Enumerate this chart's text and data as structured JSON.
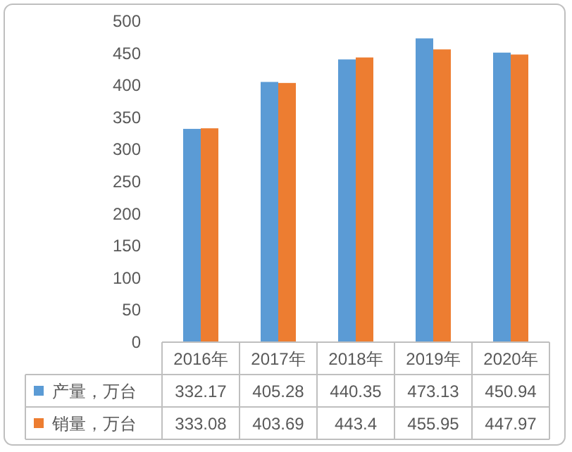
{
  "chart_data": {
    "type": "bar",
    "categories": [
      "2016年",
      "2017年",
      "2018年",
      "2019年",
      "2020年"
    ],
    "series": [
      {
        "name": "产量，万台",
        "color": "#5b9bd5",
        "values": [
          332.17,
          405.28,
          440.35,
          473.13,
          450.94
        ]
      },
      {
        "name": "销量，万台",
        "color": "#ed7d31",
        "values": [
          333.08,
          403.69,
          443.4,
          455.95,
          447.97
        ]
      }
    ],
    "ylim": [
      0,
      500
    ],
    "yticks": [
      0,
      50,
      100,
      150,
      200,
      250,
      300,
      350,
      400,
      450,
      500
    ],
    "data_labels": true,
    "legend": "bottom"
  }
}
